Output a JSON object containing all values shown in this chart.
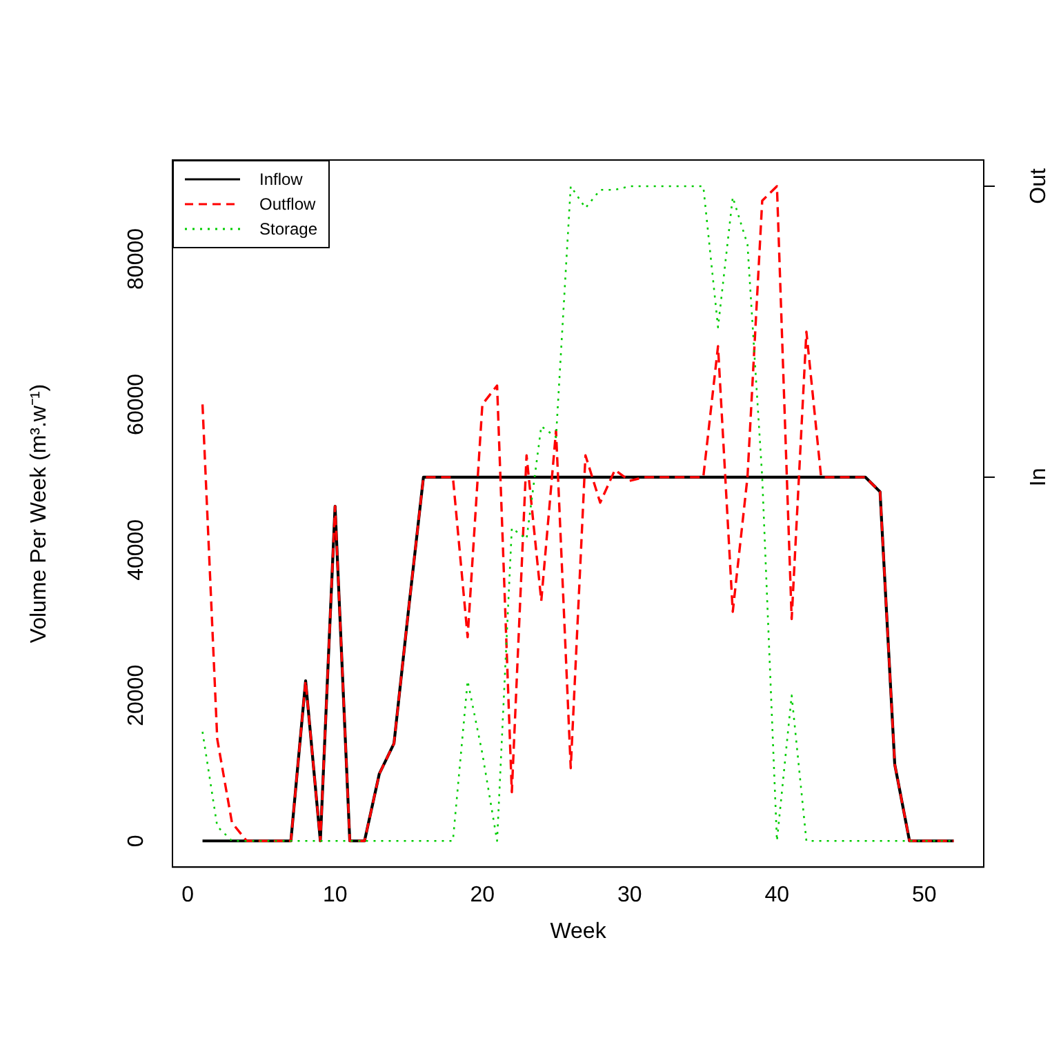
{
  "chart_data": {
    "type": "line",
    "xlabel": "Week",
    "ylabel": "Volume Per Week (m³.w⁻¹)",
    "x": [
      1,
      2,
      3,
      4,
      5,
      6,
      7,
      8,
      9,
      10,
      11,
      12,
      13,
      14,
      15,
      16,
      17,
      18,
      19,
      20,
      21,
      22,
      23,
      24,
      25,
      26,
      27,
      28,
      29,
      30,
      31,
      32,
      33,
      34,
      35,
      36,
      37,
      38,
      39,
      40,
      41,
      42,
      43,
      44,
      45,
      46,
      47,
      48,
      49,
      50,
      51,
      52
    ],
    "xlim": [
      -1.04,
      54.04
    ],
    "xticks": [
      0,
      10,
      20,
      30,
      40,
      50
    ],
    "ylim": [
      -3600,
      93600
    ],
    "yticks": [
      0,
      20000,
      40000,
      60000,
      80000
    ],
    "annotations": [
      "In",
      "Out"
    ],
    "grid": false,
    "legend": "top left",
    "marker": "none",
    "series": [
      {
        "name": "Inflow",
        "color": "#000000",
        "line_style": "solid",
        "values": [
          0,
          0,
          0,
          0,
          0,
          0,
          0,
          22000,
          0,
          46000,
          0,
          0,
          9200,
          13400,
          32000,
          50000,
          50000,
          50000,
          50000,
          50000,
          50000,
          50000,
          50000,
          50000,
          50000,
          50000,
          50000,
          50000,
          50000,
          50000,
          50000,
          50000,
          50000,
          50000,
          50000,
          50000,
          50000,
          50000,
          50000,
          50000,
          50000,
          50000,
          50000,
          50000,
          50000,
          50000,
          48000,
          10500,
          0,
          0,
          0,
          0
        ]
      },
      {
        "name": "Outflow",
        "color": "#ff0000",
        "line_style": "dashed",
        "values": [
          60000,
          14000,
          2500,
          0,
          0,
          0,
          0,
          22000,
          0,
          46000,
          0,
          0,
          9200,
          13400,
          32000,
          50000,
          50000,
          50000,
          28000,
          60000,
          62600,
          6700,
          53000,
          33000,
          56400,
          10000,
          53000,
          46500,
          51000,
          49500,
          50000,
          50000,
          50000,
          50000,
          50000,
          68000,
          31500,
          50000,
          88000,
          90000,
          30500,
          70000,
          50000,
          50000,
          50000,
          50000,
          48000,
          10500,
          0,
          0,
          0,
          0
        ]
      },
      {
        "name": "Storage",
        "color": "#00cc00",
        "line_style": "dotted",
        "values": [
          15000,
          2000,
          0,
          0,
          0,
          0,
          0,
          0,
          0,
          0,
          0,
          0,
          0,
          0,
          0,
          0,
          0,
          0,
          22000,
          12000,
          0,
          43000,
          41500,
          57000,
          55500,
          90000,
          87000,
          89500,
          89500,
          90000,
          90000,
          90000,
          90000,
          90000,
          90000,
          70600,
          88500,
          82000,
          50000,
          0,
          20000,
          0,
          0,
          0,
          0,
          0,
          0,
          0,
          0,
          0,
          0,
          0
        ]
      }
    ]
  }
}
